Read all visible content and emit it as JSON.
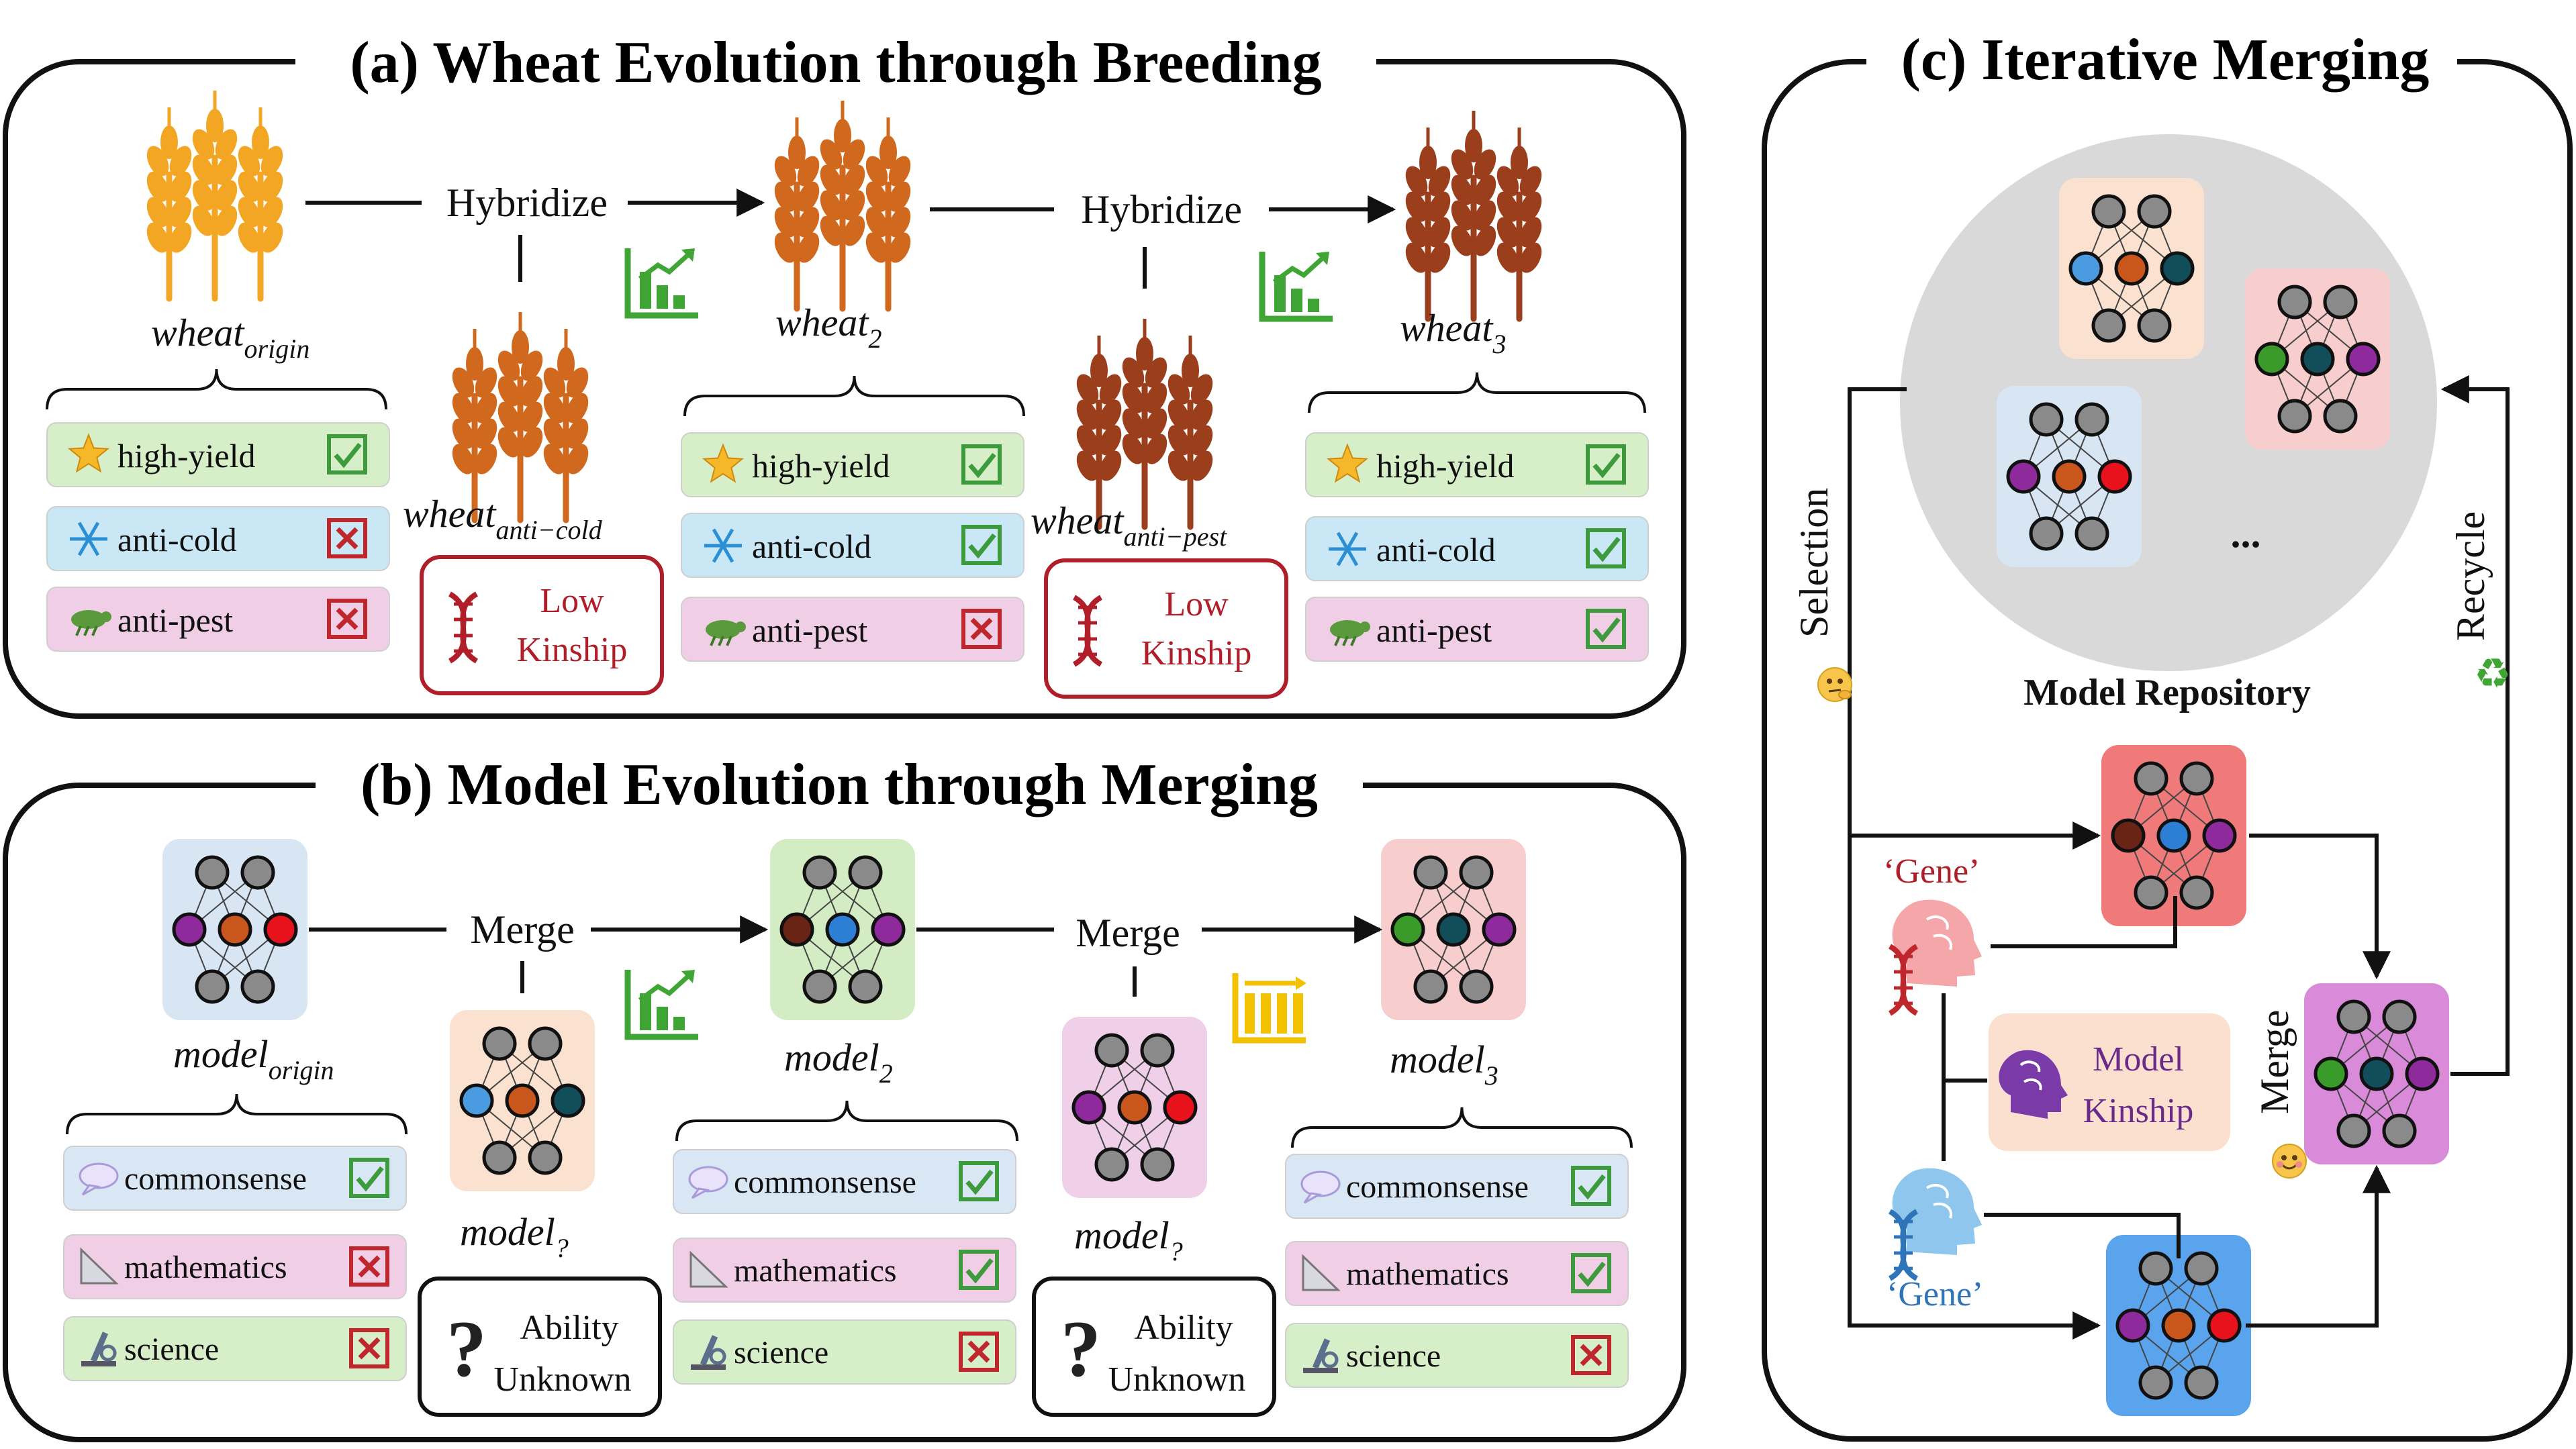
{
  "titles": {
    "a": "(a) Wheat Evolution through Breeding",
    "b": "(b) Model Evolution through Merging",
    "c": "(c) Iterative Merging"
  },
  "wheat": {
    "origin": {
      "base": "wheat",
      "sub": "origin"
    },
    "anti_cold": {
      "base": "wheat",
      "sub": "anti−cold"
    },
    "w2": {
      "base": "wheat",
      "sub": "2"
    },
    "anti_pest": {
      "base": "wheat",
      "sub": "anti−pest"
    },
    "w3": {
      "base": "wheat",
      "sub": "3"
    },
    "hybridize": "Hybridize",
    "low_kinship": [
      "Low",
      "Kinship"
    ],
    "traits": [
      "high-yield",
      "anti-cold",
      "anti-pest"
    ],
    "checks": [
      [
        true,
        false,
        false
      ],
      [
        true,
        true,
        false
      ],
      [
        true,
        true,
        true
      ]
    ]
  },
  "model": {
    "origin": {
      "base": "model",
      "sub": "origin"
    },
    "m2": {
      "base": "model",
      "sub": "2"
    },
    "m3": {
      "base": "model",
      "sub": "3"
    },
    "unknown": {
      "base": "model",
      "sub": "?"
    },
    "merge": "Merge",
    "ability_unknown": [
      "Ability",
      "Unknown"
    ],
    "abilities": [
      "commonsense",
      "mathematics",
      "science"
    ],
    "checks": [
      [
        true,
        false,
        false
      ],
      [
        true,
        true,
        false
      ],
      [
        true,
        true,
        false
      ]
    ]
  },
  "iterative": {
    "selection": "Selection",
    "recycle": "Recycle",
    "ellipsis": "...",
    "repository": "Model Repository",
    "gene": "‘Gene’",
    "model_kinship": [
      "Model",
      "Kinship"
    ],
    "merge": "Merge"
  },
  "colors": {
    "check": "#3d9a3d",
    "cross": "#c0272d",
    "trait_bg": [
      "#d7efc8",
      "#c9e7f5",
      "#f0cfe6"
    ],
    "ability_bg": [
      "#d9e6f4",
      "#f0cfe6",
      "#d7efc8"
    ],
    "low_kinship_red": "#b01e2a",
    "wheat_light": "#f3a623",
    "wheat_mid": "#d0691e",
    "wheat_dark": "#9a3e1c",
    "chart_green": "#3fa535",
    "chart_yellow": "#f2c200"
  },
  "icons": [
    "star-icon",
    "snowflake-icon",
    "bug-icon",
    "speech-bubble-icon",
    "ruler-triangle-icon",
    "microscope-icon",
    "dna-icon",
    "question-mark-icon",
    "bar-chart-up-icon",
    "bar-chart-flat-icon",
    "head-icon",
    "brain-icon",
    "recycle-icon",
    "thinking-face-icon",
    "happy-face-icon"
  ]
}
